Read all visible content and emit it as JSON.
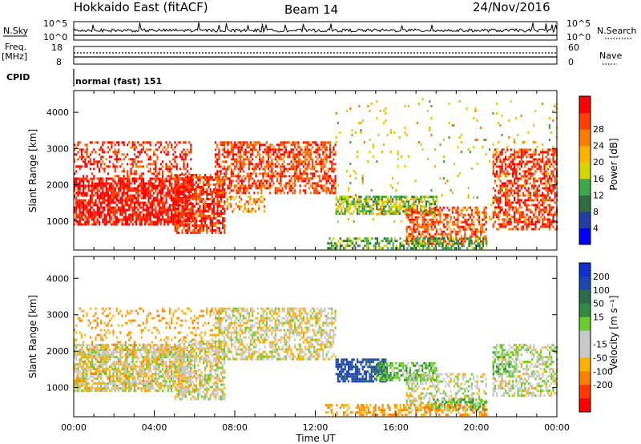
{
  "header": {
    "title": "Hokkaido East (fitACF)",
    "beam": "Beam 14",
    "date": "24/Nov/2016"
  },
  "sky_panel": {
    "left_label": "N.Sky",
    "right_label": "N.Search",
    "ticks": [
      "10^5",
      "10^0"
    ]
  },
  "freq_panel": {
    "left_label_1": "Freq.",
    "left_label_2": "[MHz]",
    "left_ticks": [
      "18",
      "8"
    ],
    "right_ticks": [
      "60",
      "0"
    ],
    "right_label": "Nave"
  },
  "cpid_panel": {
    "label": "CPID",
    "mode_text": "normal (fast) 151"
  },
  "colors": {
    "power": [
      "#0000ff",
      "#1f3fa6",
      "#2e6e3f",
      "#3ea84a",
      "#d4d400",
      "#ffb000",
      "#ff7a00",
      "#ff4000",
      "#ff0000"
    ],
    "velocity": [
      "#ff0000",
      "#ff3a00",
      "#ff8000",
      "#ffb000",
      "#c8c8c8",
      "#c8c8c8",
      "#6acd2d",
      "#2e8b3f",
      "#2c6e4c",
      "#1f45b0",
      "#1030d0"
    ]
  },
  "chart_data": [
    {
      "type": "heatmap",
      "name": "power",
      "xlabel": "",
      "ylabel": "Slant Range [km]",
      "ylim": [
        200,
        4600
      ],
      "xlim": [
        0,
        24
      ],
      "y_ticks": [
        "1000",
        "2000",
        "3000",
        "4000"
      ],
      "colorbar": {
        "label": "Power [dB]",
        "ticks": [
          "4",
          "8",
          "12",
          "16",
          "20",
          "24",
          "28"
        ],
        "range": [
          0,
          32
        ]
      },
      "regions": [
        {
          "t0": 0.0,
          "t1": 5.8,
          "r0": 900,
          "r1": 2200,
          "level": 30,
          "density": 0.75
        },
        {
          "t0": 0.0,
          "t1": 5.8,
          "r0": 2200,
          "r1": 3200,
          "level": 28,
          "density": 0.35
        },
        {
          "t0": 5.0,
          "t1": 7.5,
          "r0": 700,
          "r1": 2300,
          "level": 28,
          "density": 0.65
        },
        {
          "t0": 7.0,
          "t1": 13.0,
          "r0": 1800,
          "r1": 3200,
          "level": 27,
          "density": 0.55
        },
        {
          "t0": 7.5,
          "t1": 9.5,
          "r0": 1300,
          "r1": 1700,
          "level": 22,
          "density": 0.45
        },
        {
          "t0": 13.0,
          "t1": 18.0,
          "r0": 1200,
          "r1": 1700,
          "level": 14,
          "density": 0.7
        },
        {
          "t0": 16.5,
          "t1": 20.5,
          "r0": 400,
          "r1": 1400,
          "level": 26,
          "density": 0.55
        },
        {
          "t0": 12.5,
          "t1": 20.5,
          "r0": 250,
          "r1": 550,
          "level": 12,
          "density": 0.5
        },
        {
          "t0": 20.8,
          "t1": 24.0,
          "r0": 800,
          "r1": 3000,
          "level": 28,
          "density": 0.55
        },
        {
          "t0": 13.0,
          "t1": 24.0,
          "r0": 1000,
          "r1": 4400,
          "level": 18,
          "density": 0.04
        }
      ]
    },
    {
      "type": "heatmap",
      "name": "velocity",
      "xlabel": "Time UT",
      "ylabel": "Slant Range [km]",
      "ylim": [
        200,
        4600
      ],
      "xlim": [
        0,
        24
      ],
      "x_ticks": [
        "00:00",
        "04:00",
        "08:00",
        "12:00",
        "16:00",
        "20:00",
        "00:00"
      ],
      "y_ticks": [
        "1000",
        "2000",
        "3000",
        "4000"
      ],
      "colorbar": {
        "label": "Velocity [m s⁻¹]",
        "ticks": [
          "200",
          "100",
          "50",
          "15",
          "-15",
          "-50",
          "-100",
          "-200"
        ]
      },
      "regions": [
        {
          "t0": 0.0,
          "t1": 5.8,
          "r0": 900,
          "r1": 2200,
          "v": 0,
          "density": 0.7
        },
        {
          "t0": 0.0,
          "t1": 7.5,
          "r0": 900,
          "r1": 3200,
          "v": -40,
          "density": 0.2
        },
        {
          "t0": 5.0,
          "t1": 7.5,
          "r0": 700,
          "r1": 2300,
          "v": 0,
          "density": 0.5
        },
        {
          "t0": 7.0,
          "t1": 13.0,
          "r0": 1800,
          "r1": 3200,
          "v": -5,
          "density": 0.55
        },
        {
          "t0": 13.0,
          "t1": 15.5,
          "r0": 1200,
          "r1": 1800,
          "v": 220,
          "density": 0.75
        },
        {
          "t0": 15.0,
          "t1": 18.0,
          "r0": 1200,
          "r1": 1700,
          "v": 40,
          "density": 0.65
        },
        {
          "t0": 16.5,
          "t1": 20.5,
          "r0": 400,
          "r1": 1400,
          "v": 0,
          "density": 0.45
        },
        {
          "t0": 17.5,
          "t1": 20.5,
          "r0": 400,
          "r1": 700,
          "v": 40,
          "density": 0.5
        },
        {
          "t0": 12.5,
          "t1": 20.5,
          "r0": 250,
          "r1": 550,
          "v": -50,
          "density": 0.4
        },
        {
          "t0": 20.8,
          "t1": 24.0,
          "r0": 800,
          "r1": 2200,
          "v": 5,
          "density": 0.5
        },
        {
          "t0": 20.8,
          "t1": 22.0,
          "r0": 1300,
          "r1": 2000,
          "v": 40,
          "density": 0.35
        }
      ]
    }
  ]
}
